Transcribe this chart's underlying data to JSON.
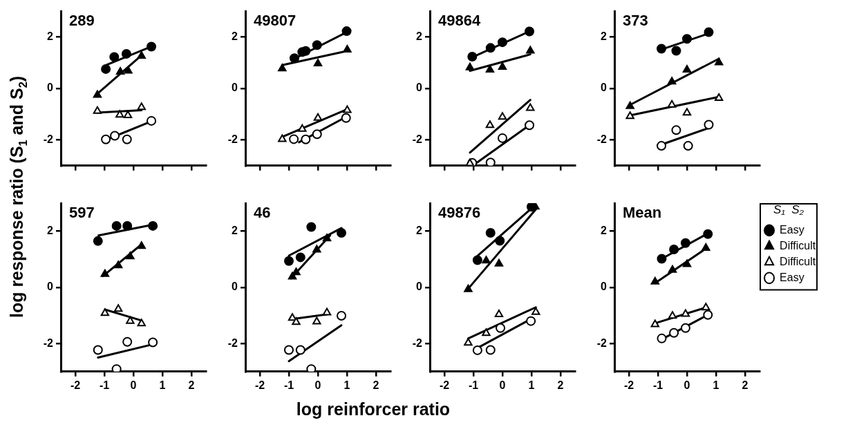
{
  "chart_data": [
    {
      "type": "scatter",
      "title": "289",
      "xlabel": "log reinforcer ratio",
      "ylabel": "log response ratio (S$_{1}$ and S$_{2}$)",
      "xlim": [
        -2.5,
        2.5
      ],
      "ylim": [
        -3,
        3
      ],
      "xticks": [
        -2,
        -1,
        0,
        1,
        2
      ],
      "yticks": [
        -2,
        0,
        2
      ],
      "tick_labels": "y",
      "grid": false,
      "legend": false,
      "series": [
        {
          "type": "scatter",
          "marker": "circle",
          "color": "#000000",
          "x": [
            -0.95,
            -0.66,
            -0.24,
            0.62
          ],
          "values": [
            0.75,
            1.22,
            1.34,
            1.62
          ]
        },
        {
          "type": "line",
          "marker": "none",
          "color": "#000000",
          "x": [
            -0.95,
            0.62
          ],
          "values": [
            0.9,
            1.62
          ]
        },
        {
          "type": "scatter",
          "marker": "triangle",
          "color": "#000000",
          "x": [
            -1.24,
            -0.45,
            -0.18,
            0.28
          ],
          "values": [
            -0.26,
            0.64,
            0.68,
            1.26
          ]
        },
        {
          "type": "line",
          "marker": "none",
          "color": "#000000",
          "x": [
            -1.24,
            0.28
          ],
          "values": [
            -0.21,
            1.28
          ]
        },
        {
          "type": "scatter",
          "marker": "triangle",
          "color": "#ffffff",
          "x": [
            -1.24,
            -0.47,
            -0.19,
            0.28
          ],
          "values": [
            -0.88,
            -1.03,
            -1.05,
            -0.73
          ]
        },
        {
          "type": "line",
          "marker": "none",
          "color": "#000000",
          "x": [
            -1.24,
            0.28
          ],
          "values": [
            -0.94,
            -0.85
          ]
        },
        {
          "type": "scatter",
          "marker": "circle",
          "color": "#ffffff",
          "x": [
            -0.95,
            -0.64,
            -0.22,
            0.62
          ],
          "values": [
            -1.98,
            -1.84,
            -1.98,
            -1.26
          ]
        },
        {
          "type": "line",
          "marker": "none",
          "color": "#000000",
          "x": [
            -0.95,
            0.62
          ],
          "values": [
            -2.0,
            -1.28
          ]
        }
      ]
    },
    {
      "type": "scatter",
      "title": "49807",
      "xlim": [
        -2.5,
        2.5
      ],
      "ylim": [
        -3,
        3
      ],
      "xticks": [
        -2,
        -1,
        0,
        1,
        2
      ],
      "yticks": [
        -2,
        0,
        2
      ],
      "tick_labels": "y",
      "grid": false,
      "legend": false,
      "series": [
        {
          "type": "scatter",
          "marker": "circle",
          "color": "#000000",
          "x": [
            -0.81,
            -0.54,
            -0.42,
            -0.03,
            0.99
          ],
          "values": [
            1.17,
            1.41,
            1.45,
            1.68,
            2.22
          ]
        },
        {
          "type": "line",
          "marker": "none",
          "color": "#000000",
          "x": [
            -0.81,
            0.99
          ],
          "values": [
            1.15,
            2.18
          ]
        },
        {
          "type": "scatter",
          "marker": "triangle",
          "color": "#000000",
          "x": [
            -1.23,
            0,
            1.01
          ],
          "values": [
            0.77,
            0.96,
            1.5
          ]
        },
        {
          "type": "line",
          "marker": "none",
          "color": "#000000",
          "x": [
            -1.23,
            1.01
          ],
          "values": [
            0.9,
            1.45
          ]
        },
        {
          "type": "scatter",
          "marker": "triangle",
          "color": "#ffffff",
          "x": [
            -1.23,
            -0.54,
            0,
            1.01
          ],
          "values": [
            -1.97,
            -1.58,
            -1.15,
            -0.85
          ]
        },
        {
          "type": "line",
          "marker": "none",
          "color": "#000000",
          "x": [
            -1.23,
            1.01
          ],
          "values": [
            -1.88,
            -0.81
          ]
        },
        {
          "type": "scatter",
          "marker": "circle",
          "color": "#ffffff",
          "x": [
            -0.83,
            -0.42,
            -0.03,
            0.97
          ],
          "values": [
            -1.97,
            -1.98,
            -1.78,
            -1.15
          ]
        },
        {
          "type": "line",
          "marker": "none",
          "color": "#000000",
          "x": [
            -0.65,
            0.97
          ],
          "values": [
            -2.09,
            -1.11
          ]
        }
      ]
    },
    {
      "type": "scatter",
      "title": "49864",
      "xlim": [
        -2.5,
        2.5
      ],
      "ylim": [
        -3,
        3
      ],
      "xticks": [
        -2,
        -1,
        0,
        1,
        2
      ],
      "yticks": [
        -2,
        0,
        2
      ],
      "tick_labels": "y",
      "grid": false,
      "legend": false,
      "series": [
        {
          "type": "scatter",
          "marker": "circle",
          "color": "#000000",
          "x": [
            -1.04,
            -0.41,
            0,
            0.93
          ],
          "values": [
            1.23,
            1.57,
            1.79,
            2.21
          ]
        },
        {
          "type": "line",
          "marker": "none",
          "color": "#000000",
          "x": [
            -1.04,
            0.93
          ],
          "values": [
            1.21,
            2.21
          ]
        },
        {
          "type": "scatter",
          "marker": "triangle",
          "color": "#000000",
          "x": [
            -1.12,
            -0.43,
            0,
            0.96
          ],
          "values": [
            0.81,
            0.72,
            0.83,
            1.46
          ]
        },
        {
          "type": "line",
          "marker": "none",
          "color": "#000000",
          "x": [
            -1.12,
            0.96
          ],
          "values": [
            0.68,
            1.32
          ]
        },
        {
          "type": "scatter",
          "marker": "triangle",
          "color": "#ffffff",
          "x": [
            -1.12,
            -0.43,
            0,
            0.96
          ],
          "values": [
            -2.91,
            -1.43,
            -1.11,
            -0.77
          ]
        },
        {
          "type": "line",
          "marker": "none",
          "color": "#000000",
          "x": [
            -1.12,
            0.96
          ],
          "values": [
            -2.49,
            -0.45
          ]
        },
        {
          "type": "scatter",
          "marker": "circle",
          "color": "#ffffff",
          "x": [
            -1.04,
            -0.41,
            0,
            0.93
          ],
          "values": [
            -2.89,
            -2.88,
            -1.93,
            -1.43
          ]
        },
        {
          "type": "line",
          "marker": "none",
          "color": "#000000",
          "x": [
            -1.0,
            0.93
          ],
          "values": [
            -2.98,
            -1.43
          ]
        }
      ]
    },
    {
      "type": "scatter",
      "title": "373",
      "xlim": [
        -2.5,
        2.5
      ],
      "ylim": [
        -3,
        3
      ],
      "xticks": [
        -2,
        -1,
        0,
        1,
        2
      ],
      "yticks": [
        -2,
        0,
        2
      ],
      "tick_labels": "y",
      "grid": false,
      "legend": false,
      "series": [
        {
          "type": "scatter",
          "marker": "circle",
          "color": "#000000",
          "x": [
            -0.88,
            -0.37,
            0,
            0.75
          ],
          "values": [
            1.54,
            1.46,
            1.92,
            2.18
          ]
        },
        {
          "type": "line",
          "marker": "none",
          "color": "#000000",
          "x": [
            -0.88,
            0.75
          ],
          "values": [
            1.51,
            2.13
          ]
        },
        {
          "type": "scatter",
          "marker": "triangle",
          "color": "#000000",
          "x": [
            -1.96,
            -0.52,
            0,
            1.1
          ],
          "values": [
            -0.69,
            0.26,
            0.72,
            1.0
          ]
        },
        {
          "type": "line",
          "marker": "none",
          "color": "#000000",
          "x": [
            -1.96,
            1.1
          ],
          "values": [
            -0.64,
            1.15
          ]
        },
        {
          "type": "scatter",
          "marker": "triangle",
          "color": "#ffffff",
          "x": [
            -1.96,
            -0.52,
            0,
            1.1
          ],
          "values": [
            -1.08,
            -0.64,
            -0.95,
            -0.38
          ]
        },
        {
          "type": "line",
          "marker": "none",
          "color": "#000000",
          "x": [
            -1.96,
            1.1
          ],
          "values": [
            -1.05,
            -0.33
          ]
        },
        {
          "type": "scatter",
          "marker": "circle",
          "color": "#ffffff",
          "x": [
            -0.88,
            -0.37,
            0.04,
            0.75
          ],
          "values": [
            -2.23,
            -1.62,
            -2.23,
            -1.41
          ]
        },
        {
          "type": "line",
          "marker": "none",
          "color": "#000000",
          "x": [
            -0.88,
            0.75
          ],
          "values": [
            -2.18,
            -1.54
          ]
        }
      ]
    },
    {
      "type": "scatter",
      "title": "597",
      "xlim": [
        -2.5,
        2.5
      ],
      "ylim": [
        -3,
        3
      ],
      "xticks": [
        -2,
        -1,
        0,
        1,
        2
      ],
      "yticks": [
        -2,
        0,
        2
      ],
      "grid": false,
      "legend": false,
      "series": [
        {
          "type": "scatter",
          "marker": "circle",
          "color": "#000000",
          "x": [
            -1.22,
            -0.58,
            -0.21,
            0.67
          ],
          "values": [
            1.65,
            2.19,
            2.19,
            2.19
          ]
        },
        {
          "type": "line",
          "marker": "none",
          "color": "#000000",
          "x": [
            -1.2,
            0.67
          ],
          "values": [
            1.85,
            2.23
          ]
        },
        {
          "type": "scatter",
          "marker": "triangle",
          "color": "#000000",
          "x": [
            -0.98,
            -0.52,
            -0.11,
            0.28
          ],
          "values": [
            0.47,
            0.78,
            1.1,
            1.47
          ]
        },
        {
          "type": "line",
          "marker": "none",
          "color": "#000000",
          "x": [
            -1.05,
            0.28
          ],
          "values": [
            0.4,
            1.53
          ]
        },
        {
          "type": "scatter",
          "marker": "triangle",
          "color": "#ffffff",
          "x": [
            -0.98,
            -0.52,
            -0.11,
            0.28
          ],
          "values": [
            -0.92,
            -0.77,
            -1.2,
            -1.29
          ]
        },
        {
          "type": "line",
          "marker": "none",
          "color": "#000000",
          "x": [
            -0.98,
            0.28
          ],
          "values": [
            -0.79,
            -1.18
          ]
        },
        {
          "type": "scatter",
          "marker": "circle",
          "color": "#ffffff",
          "x": [
            -1.22,
            -0.58,
            -0.21,
            0.67
          ],
          "values": [
            -2.23,
            -2.91,
            -1.94,
            -1.96
          ]
        },
        {
          "type": "line",
          "marker": "none",
          "color": "#000000",
          "x": [
            -1.22,
            0.67
          ],
          "values": [
            -2.5,
            -2.03
          ]
        }
      ]
    },
    {
      "type": "scatter",
      "title": "46",
      "xlim": [
        -2.5,
        2.5
      ],
      "ylim": [
        -3,
        3
      ],
      "xticks": [
        -2,
        -1,
        0,
        1,
        2
      ],
      "yticks": [
        -2,
        0,
        2
      ],
      "grid": false,
      "legend": false,
      "series": [
        {
          "type": "scatter",
          "marker": "circle",
          "color": "#000000",
          "x": [
            -1.0,
            -0.6,
            -0.23,
            0.81
          ],
          "values": [
            0.94,
            1.07,
            2.15,
            1.94
          ]
        },
        {
          "type": "line",
          "marker": "none",
          "color": "#000000",
          "x": [
            -1.0,
            0.81
          ],
          "values": [
            1.13,
            2.11
          ]
        },
        {
          "type": "scatter",
          "marker": "triangle",
          "color": "#000000",
          "x": [
            -0.88,
            -0.75,
            -0.04,
            0.31
          ],
          "values": [
            0.38,
            0.53,
            1.34,
            1.74
          ]
        },
        {
          "type": "line",
          "marker": "none",
          "color": "#000000",
          "x": [
            -0.93,
            0.42
          ],
          "values": [
            0.32,
            1.85
          ]
        },
        {
          "type": "scatter",
          "marker": "triangle",
          "color": "#ffffff",
          "x": [
            -0.88,
            -0.75,
            -0.04,
            0.31
          ],
          "values": [
            -1.09,
            -1.24,
            -1.22,
            -0.9
          ]
        },
        {
          "type": "line",
          "marker": "none",
          "color": "#000000",
          "x": [
            -0.88,
            0.31
          ],
          "values": [
            -1.13,
            -0.96
          ]
        },
        {
          "type": "scatter",
          "marker": "circle",
          "color": "#ffffff",
          "x": [
            -1.0,
            -0.6,
            -0.23,
            0.81
          ],
          "values": [
            -2.23,
            -2.23,
            -2.91,
            -1.01
          ]
        },
        {
          "type": "line",
          "marker": "none",
          "color": "#000000",
          "x": [
            -1.0,
            0.81
          ],
          "values": [
            -2.63,
            -1.35
          ]
        }
      ]
    },
    {
      "type": "scatter",
      "title": "49876",
      "xlim": [
        -2.5,
        2.5
      ],
      "ylim": [
        -3,
        3
      ],
      "xticks": [
        -2,
        -1,
        0,
        1,
        2
      ],
      "yticks": [
        -2,
        0,
        2
      ],
      "grid": false,
      "legend": false,
      "series": [
        {
          "type": "scatter",
          "marker": "circle",
          "color": "#000000",
          "x": [
            -0.86,
            -0.41,
            -0.09,
            1.0
          ],
          "values": [
            0.97,
            1.94,
            1.66,
            2.87
          ]
        },
        {
          "type": "line",
          "marker": "none",
          "color": "#000000",
          "x": [
            -0.86,
            1.06
          ],
          "values": [
            1.12,
            2.87
          ]
        },
        {
          "type": "scatter",
          "marker": "triangle",
          "color": "#000000",
          "x": [
            -1.18,
            -0.56,
            -0.12,
            1.13
          ],
          "values": [
            -0.07,
            0.95,
            0.84,
            2.87
          ]
        },
        {
          "type": "line",
          "marker": "none",
          "color": "#000000",
          "x": [
            -1.23,
            1.16
          ],
          "values": [
            -0.11,
            2.79
          ]
        },
        {
          "type": "scatter",
          "marker": "triangle",
          "color": "#ffffff",
          "x": [
            -1.18,
            -0.56,
            -0.12,
            1.15
          ],
          "values": [
            -1.98,
            -1.63,
            -0.96,
            -0.88
          ]
        },
        {
          "type": "line",
          "marker": "none",
          "color": "#000000",
          "x": [
            -1.18,
            1.15
          ],
          "values": [
            -1.82,
            -0.71
          ]
        },
        {
          "type": "scatter",
          "marker": "circle",
          "color": "#ffffff",
          "x": [
            -0.86,
            -0.41,
            -0.07,
            0.98
          ],
          "values": [
            -2.24,
            -2.23,
            -1.45,
            -1.2
          ]
        },
        {
          "type": "line",
          "marker": "none",
          "color": "#000000",
          "x": [
            -0.86,
            0.98
          ],
          "values": [
            -2.16,
            -1.13
          ]
        }
      ]
    },
    {
      "type": "scatter",
      "title": "Mean",
      "legend_title": "S₁  S₂",
      "xlim": [
        -2.5,
        2.5
      ],
      "ylim": [
        -3,
        3
      ],
      "xticks": [
        -2,
        -1,
        0,
        1,
        2
      ],
      "yticks": [
        -2,
        0,
        2
      ],
      "grid": false,
      "legend": "right",
      "series": [
        {
          "type": "scatter",
          "name": "Easy",
          "marker": "circle",
          "color": "#000000",
          "x": [
            -0.87,
            -0.45,
            -0.05,
            0.72
          ],
          "values": [
            1.02,
            1.35,
            1.58,
            1.9
          ]
        },
        {
          "type": "line",
          "marker": "none",
          "color": "#000000",
          "x": [
            -0.87,
            0.72
          ],
          "values": [
            1.02,
            1.92
          ]
        },
        {
          "type": "scatter",
          "name": "Difficult",
          "marker": "triangle",
          "color": "#000000",
          "x": [
            -1.1,
            -0.5,
            0,
            0.65
          ],
          "values": [
            0.2,
            0.62,
            0.82,
            1.4
          ]
        },
        {
          "type": "line",
          "marker": "none",
          "color": "#000000",
          "x": [
            -1.1,
            0.65
          ],
          "values": [
            0.15,
            1.38
          ]
        },
        {
          "type": "scatter",
          "name": "Difficult",
          "marker": "triangle",
          "color": "#ffffff",
          "x": [
            -1.1,
            -0.5,
            -0.05,
            0.65
          ],
          "values": [
            -1.32,
            -1.02,
            -0.95,
            -0.72
          ]
        },
        {
          "type": "line",
          "marker": "none",
          "color": "#000000",
          "x": [
            -1.1,
            0.65
          ],
          "values": [
            -1.28,
            -0.72
          ]
        },
        {
          "type": "scatter",
          "name": "Easy",
          "marker": "circle",
          "color": "#ffffff",
          "x": [
            -0.87,
            -0.45,
            -0.05,
            0.72
          ],
          "values": [
            -1.82,
            -1.62,
            -1.45,
            -0.98
          ]
        },
        {
          "type": "line",
          "marker": "none",
          "color": "#000000",
          "x": [
            -0.87,
            0.72
          ],
          "values": [
            -1.85,
            -0.98
          ]
        }
      ]
    }
  ]
}
